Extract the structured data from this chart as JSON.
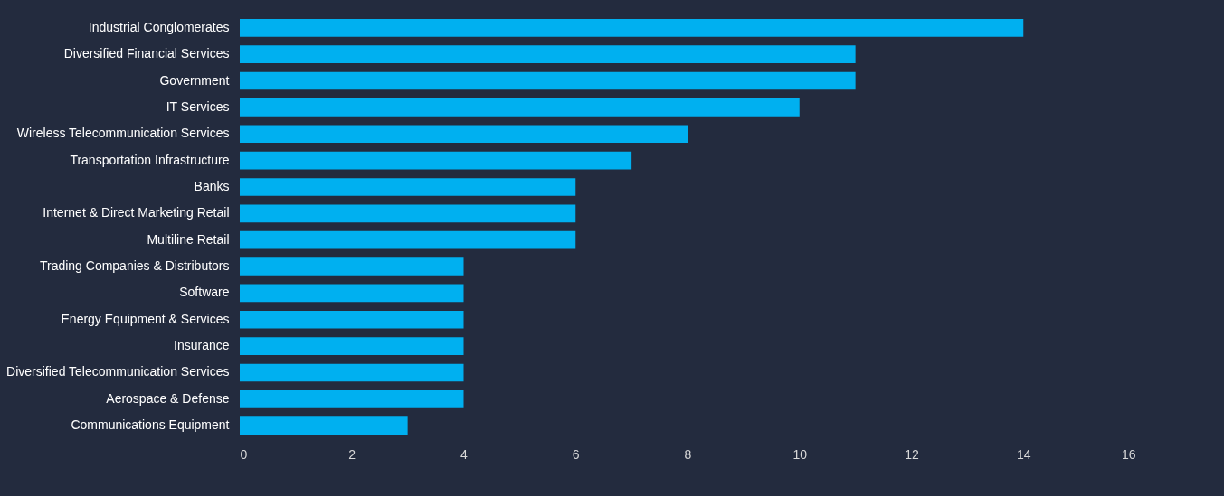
{
  "chart_data": {
    "type": "bar",
    "orientation": "horizontal",
    "categories": [
      "Industrial Conglomerates",
      "Diversified Financial Services",
      "Government",
      "IT Services",
      "Wireless Telecommunication Services",
      "Transportation Infrastructure",
      "Banks",
      "Internet & Direct Marketing Retail",
      "Multiline Retail",
      "Trading Companies & Distributors",
      "Software",
      "Energy Equipment & Services",
      "Insurance",
      "Diversified Telecommunication Services",
      "Aerospace & Defense",
      "Communications Equipment"
    ],
    "values": [
      14,
      11,
      11,
      10,
      8,
      7,
      6,
      6,
      6,
      4,
      4,
      4,
      4,
      4,
      4,
      3
    ],
    "color": "#00b0f0",
    "xlim": [
      0,
      16
    ],
    "xticks": [
      0,
      2,
      4,
      6,
      8,
      10,
      12,
      14,
      16
    ],
    "grid": false
  }
}
